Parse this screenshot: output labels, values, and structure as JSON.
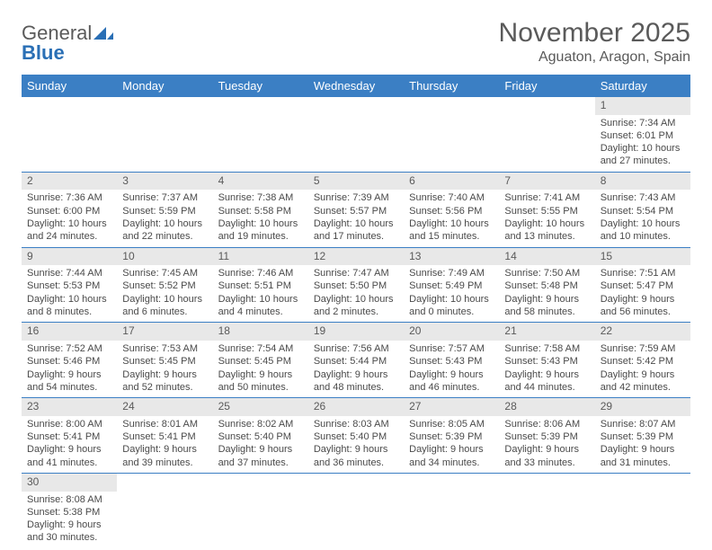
{
  "logo": {
    "text1": "General",
    "text2": "Blue"
  },
  "header": {
    "title": "November 2025",
    "location": "Aguaton, Aragon, Spain"
  },
  "day_headers": [
    "Sunday",
    "Monday",
    "Tuesday",
    "Wednesday",
    "Thursday",
    "Friday",
    "Saturday"
  ],
  "colors": {
    "header_bg": "#3b7fc4",
    "header_text": "#ffffff",
    "daynum_bg": "#e8e8e8",
    "text": "#4a4a4a",
    "rule": "#3b7fc4"
  },
  "weeks": [
    [
      null,
      null,
      null,
      null,
      null,
      null,
      {
        "n": "1",
        "sr": "Sunrise: 7:34 AM",
        "ss": "Sunset: 6:01 PM",
        "dl": "Daylight: 10 hours and 27 minutes."
      }
    ],
    [
      {
        "n": "2",
        "sr": "Sunrise: 7:36 AM",
        "ss": "Sunset: 6:00 PM",
        "dl": "Daylight: 10 hours and 24 minutes."
      },
      {
        "n": "3",
        "sr": "Sunrise: 7:37 AM",
        "ss": "Sunset: 5:59 PM",
        "dl": "Daylight: 10 hours and 22 minutes."
      },
      {
        "n": "4",
        "sr": "Sunrise: 7:38 AM",
        "ss": "Sunset: 5:58 PM",
        "dl": "Daylight: 10 hours and 19 minutes."
      },
      {
        "n": "5",
        "sr": "Sunrise: 7:39 AM",
        "ss": "Sunset: 5:57 PM",
        "dl": "Daylight: 10 hours and 17 minutes."
      },
      {
        "n": "6",
        "sr": "Sunrise: 7:40 AM",
        "ss": "Sunset: 5:56 PM",
        "dl": "Daylight: 10 hours and 15 minutes."
      },
      {
        "n": "7",
        "sr": "Sunrise: 7:41 AM",
        "ss": "Sunset: 5:55 PM",
        "dl": "Daylight: 10 hours and 13 minutes."
      },
      {
        "n": "8",
        "sr": "Sunrise: 7:43 AM",
        "ss": "Sunset: 5:54 PM",
        "dl": "Daylight: 10 hours and 10 minutes."
      }
    ],
    [
      {
        "n": "9",
        "sr": "Sunrise: 7:44 AM",
        "ss": "Sunset: 5:53 PM",
        "dl": "Daylight: 10 hours and 8 minutes."
      },
      {
        "n": "10",
        "sr": "Sunrise: 7:45 AM",
        "ss": "Sunset: 5:52 PM",
        "dl": "Daylight: 10 hours and 6 minutes."
      },
      {
        "n": "11",
        "sr": "Sunrise: 7:46 AM",
        "ss": "Sunset: 5:51 PM",
        "dl": "Daylight: 10 hours and 4 minutes."
      },
      {
        "n": "12",
        "sr": "Sunrise: 7:47 AM",
        "ss": "Sunset: 5:50 PM",
        "dl": "Daylight: 10 hours and 2 minutes."
      },
      {
        "n": "13",
        "sr": "Sunrise: 7:49 AM",
        "ss": "Sunset: 5:49 PM",
        "dl": "Daylight: 10 hours and 0 minutes."
      },
      {
        "n": "14",
        "sr": "Sunrise: 7:50 AM",
        "ss": "Sunset: 5:48 PM",
        "dl": "Daylight: 9 hours and 58 minutes."
      },
      {
        "n": "15",
        "sr": "Sunrise: 7:51 AM",
        "ss": "Sunset: 5:47 PM",
        "dl": "Daylight: 9 hours and 56 minutes."
      }
    ],
    [
      {
        "n": "16",
        "sr": "Sunrise: 7:52 AM",
        "ss": "Sunset: 5:46 PM",
        "dl": "Daylight: 9 hours and 54 minutes."
      },
      {
        "n": "17",
        "sr": "Sunrise: 7:53 AM",
        "ss": "Sunset: 5:45 PM",
        "dl": "Daylight: 9 hours and 52 minutes."
      },
      {
        "n": "18",
        "sr": "Sunrise: 7:54 AM",
        "ss": "Sunset: 5:45 PM",
        "dl": "Daylight: 9 hours and 50 minutes."
      },
      {
        "n": "19",
        "sr": "Sunrise: 7:56 AM",
        "ss": "Sunset: 5:44 PM",
        "dl": "Daylight: 9 hours and 48 minutes."
      },
      {
        "n": "20",
        "sr": "Sunrise: 7:57 AM",
        "ss": "Sunset: 5:43 PM",
        "dl": "Daylight: 9 hours and 46 minutes."
      },
      {
        "n": "21",
        "sr": "Sunrise: 7:58 AM",
        "ss": "Sunset: 5:43 PM",
        "dl": "Daylight: 9 hours and 44 minutes."
      },
      {
        "n": "22",
        "sr": "Sunrise: 7:59 AM",
        "ss": "Sunset: 5:42 PM",
        "dl": "Daylight: 9 hours and 42 minutes."
      }
    ],
    [
      {
        "n": "23",
        "sr": "Sunrise: 8:00 AM",
        "ss": "Sunset: 5:41 PM",
        "dl": "Daylight: 9 hours and 41 minutes."
      },
      {
        "n": "24",
        "sr": "Sunrise: 8:01 AM",
        "ss": "Sunset: 5:41 PM",
        "dl": "Daylight: 9 hours and 39 minutes."
      },
      {
        "n": "25",
        "sr": "Sunrise: 8:02 AM",
        "ss": "Sunset: 5:40 PM",
        "dl": "Daylight: 9 hours and 37 minutes."
      },
      {
        "n": "26",
        "sr": "Sunrise: 8:03 AM",
        "ss": "Sunset: 5:40 PM",
        "dl": "Daylight: 9 hours and 36 minutes."
      },
      {
        "n": "27",
        "sr": "Sunrise: 8:05 AM",
        "ss": "Sunset: 5:39 PM",
        "dl": "Daylight: 9 hours and 34 minutes."
      },
      {
        "n": "28",
        "sr": "Sunrise: 8:06 AM",
        "ss": "Sunset: 5:39 PM",
        "dl": "Daylight: 9 hours and 33 minutes."
      },
      {
        "n": "29",
        "sr": "Sunrise: 8:07 AM",
        "ss": "Sunset: 5:39 PM",
        "dl": "Daylight: 9 hours and 31 minutes."
      }
    ],
    [
      {
        "n": "30",
        "sr": "Sunrise: 8:08 AM",
        "ss": "Sunset: 5:38 PM",
        "dl": "Daylight: 9 hours and 30 minutes."
      },
      null,
      null,
      null,
      null,
      null,
      null
    ]
  ]
}
